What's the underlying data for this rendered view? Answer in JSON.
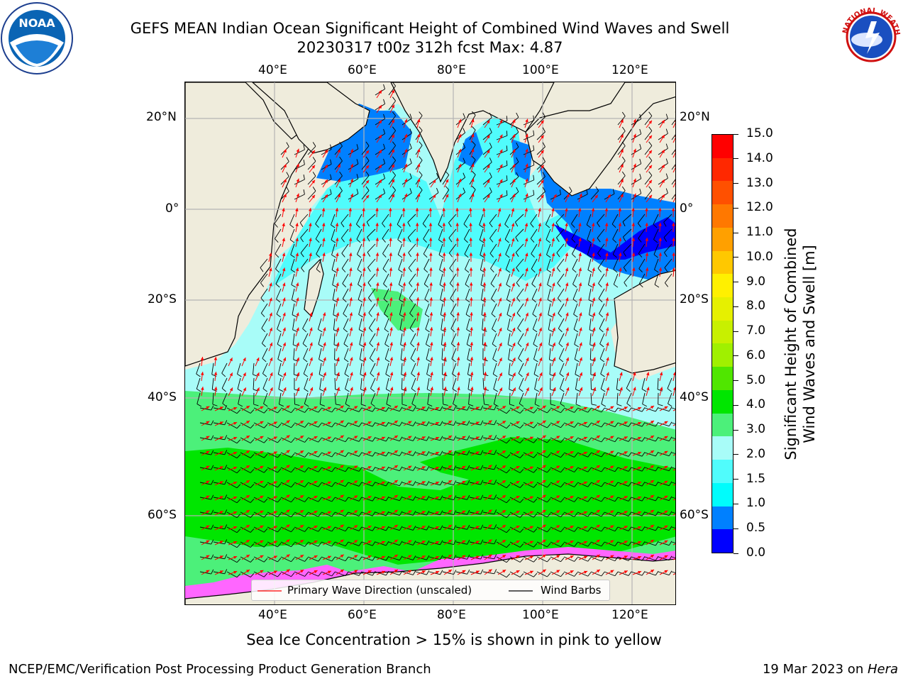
{
  "header": {
    "title_line1": "GEFS MEAN Indian Ocean Significant Height of Combined Wind Waves and Swell",
    "title_line2": "20230317 t00z 312h fcst   Max: 4.87"
  },
  "logos": {
    "left": "NOAA",
    "right": "NATIONAL WEATHER SERVICE"
  },
  "map": {
    "lon_ticks": [
      "40°E",
      "60°E",
      "80°E",
      "100°E",
      "120°E"
    ],
    "lat_ticks": [
      "20°N",
      "0°",
      "20°S",
      "40°S",
      "60°S"
    ],
    "lon_values": [
      40,
      60,
      80,
      100,
      120
    ],
    "lat_values": [
      20,
      0,
      -20,
      -40,
      -60
    ],
    "extent": {
      "lon_min": 20,
      "lon_max": 130,
      "lat_min": -75,
      "lat_max": 28
    }
  },
  "colorbar": {
    "label_line1": "Significant Height of Combined",
    "label_line2": "Wind Waves and Swell [m]",
    "ticks": [
      "15.0",
      "14.0",
      "13.0",
      "12.0",
      "11.0",
      "10.0",
      "9.0",
      "8.0",
      "7.0",
      "6.0",
      "5.0",
      "4.0",
      "3.0",
      "2.0",
      "1.5",
      "1.0",
      "0.5",
      "0.0"
    ],
    "colors": [
      "#ff0000",
      "#ff2800",
      "#ff5000",
      "#ff7800",
      "#ffa000",
      "#ffc800",
      "#fff000",
      "#e6f000",
      "#c8f000",
      "#a0f000",
      "#50e600",
      "#00e600",
      "#4cf07a",
      "#a8fcf8",
      "#50fcfc",
      "#00fcfc",
      "#0080ff",
      "#0000ff"
    ]
  },
  "legend": {
    "wave_label": "Primary Wave Direction (unscaled)",
    "wind_label": "Wind Barbs",
    "wave_color": "#ff0000",
    "wind_color": "#000000"
  },
  "note": "Sea Ice Concentration > 15% is shown in pink to yellow",
  "footer": {
    "left": "NCEP/EMC/Verification Post Processing Product Generation Branch",
    "right_prefix": "19 Mar 2023 on ",
    "right_host": "Hera"
  }
}
